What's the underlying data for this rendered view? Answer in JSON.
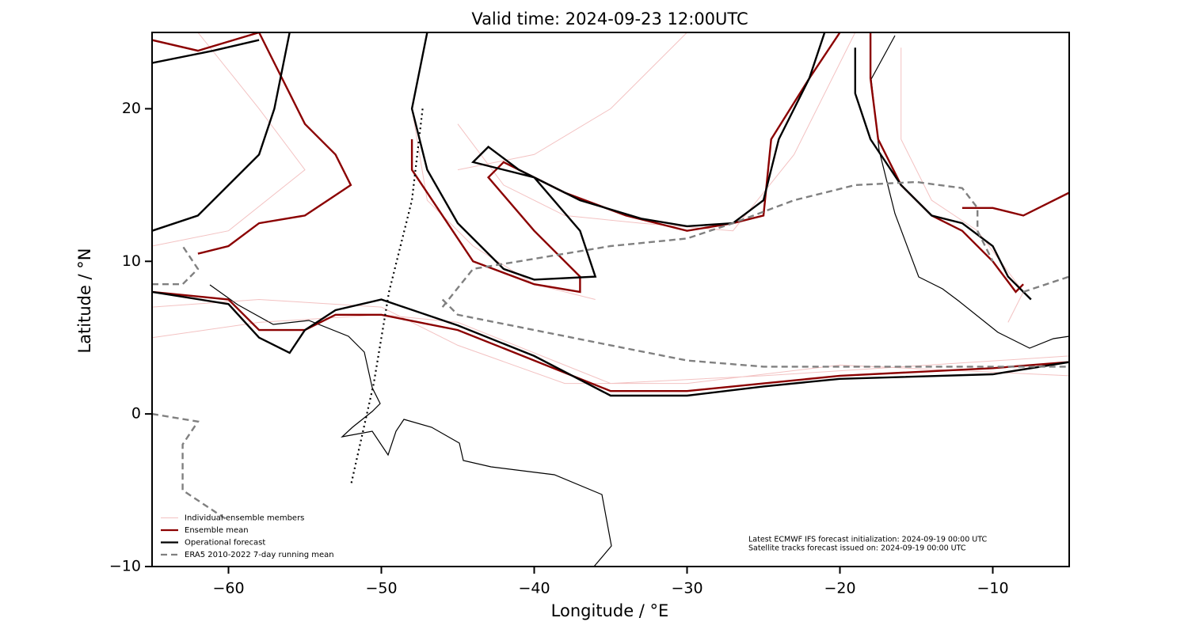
{
  "chart_data": {
    "type": "line",
    "title": "Valid time: 2024-09-23 12:00UTC",
    "xlabel": "Longitude / °E",
    "ylabel": "Latitude / °N",
    "xlim": [
      -65,
      -5
    ],
    "ylim": [
      -10,
      25
    ],
    "xticks": [
      {
        "value": -60,
        "label": "−60"
      },
      {
        "value": -50,
        "label": "−50"
      },
      {
        "value": -40,
        "label": "−40"
      },
      {
        "value": -30,
        "label": "−30"
      },
      {
        "value": -20,
        "label": "−20"
      },
      {
        "value": -10,
        "label": "−10"
      }
    ],
    "yticks": [
      {
        "value": -10,
        "label": "−10"
      },
      0,
      10,
      20
    ],
    "legend": "lower left",
    "series": [
      {
        "name": "Individual ensemble members",
        "color": "#e06666",
        "alpha": 0.4,
        "style": "solid",
        "x": [
          -65,
          -58,
          -50,
          -45,
          -40,
          -35,
          -25,
          -5,
          null,
          -65,
          -58,
          -50,
          -45,
          -38,
          -30,
          -20,
          -5,
          null,
          -48,
          -47,
          -44,
          -40,
          -36,
          null,
          -45,
          -42,
          -38,
          -33,
          -27,
          -23,
          -19,
          null,
          -62,
          -58,
          -55,
          -60,
          -65,
          null,
          -16,
          -16,
          -14,
          -11,
          -8,
          -9,
          null,
          -30,
          -35,
          -40,
          -45
        ],
        "y": [
          5,
          6,
          6.5,
          6,
          4,
          2,
          2.5,
          3.8,
          null,
          7,
          7.5,
          7,
          4.5,
          2,
          2,
          3.2,
          2.5,
          null,
          20,
          14,
          11,
          8.5,
          7.5,
          null,
          19,
          15,
          13,
          12.5,
          12,
          17,
          25,
          null,
          25,
          20,
          16,
          12,
          11,
          null,
          24,
          18,
          14,
          12,
          8,
          6,
          null,
          25,
          20,
          17,
          16
        ]
      },
      {
        "name": "Ensemble mean",
        "color": "#8b0000",
        "alpha": 1,
        "style": "solid",
        "x": [
          -65,
          -60,
          -58,
          -55,
          -53,
          -50,
          -45,
          -40,
          -35,
          -30,
          -25,
          -20,
          -10,
          -5,
          null,
          -48,
          -48,
          -46,
          -44,
          -40,
          -37,
          -37,
          -40,
          -43,
          -42,
          -38,
          -34,
          -30,
          -27,
          -25,
          -24.5,
          -22,
          -20,
          null,
          -65,
          -62,
          -58,
          null,
          -58,
          -57,
          -56,
          -55,
          -53,
          -52,
          -55,
          -58,
          -60,
          -62,
          null,
          -18,
          -18,
          -17.5,
          -16,
          -14,
          -12,
          -10,
          -8.5,
          -8,
          null,
          -5,
          -8,
          -10,
          -12
        ],
        "y": [
          8,
          7.5,
          5.5,
          5.5,
          6.5,
          6.5,
          5.5,
          3.5,
          1.5,
          1.5,
          2,
          2.5,
          3,
          3.4,
          null,
          18,
          16,
          13,
          10,
          8.5,
          8,
          9,
          12,
          15.5,
          16.5,
          14.5,
          13,
          12,
          12.5,
          13,
          18,
          22,
          25,
          null,
          24.5,
          23.8,
          25,
          null,
          25,
          23,
          21,
          19,
          17,
          15,
          13,
          12.5,
          11,
          10.5,
          null,
          25,
          22,
          18,
          15,
          13,
          12,
          10,
          8,
          8.5,
          null,
          14.5,
          13,
          13.5,
          13.5
        ]
      },
      {
        "name": "Operational forecast",
        "color": "#000000",
        "alpha": 1,
        "style": "solid",
        "x": [
          -65,
          -60,
          -58,
          -56,
          -55,
          -53,
          -50,
          -45,
          -40,
          -35,
          -30,
          -25,
          -20,
          -10,
          -5,
          null,
          -47,
          -48,
          -47,
          -45,
          -42,
          -40,
          -36,
          -37,
          -40,
          -44,
          -43,
          -41,
          -37,
          -33,
          -30,
          -27,
          -25,
          -24,
          -22,
          -21,
          null,
          -65,
          -61,
          -58,
          null,
          -56,
          -57,
          -58,
          -60,
          -62,
          -65,
          null,
          -19,
          -19,
          -18,
          -16,
          -14,
          -12,
          -10,
          -9,
          -8,
          -7.5
        ],
        "y": [
          8,
          7.2,
          5,
          4,
          5.5,
          6.8,
          7.5,
          5.8,
          3.8,
          1.2,
          1.2,
          1.8,
          2.3,
          2.6,
          3.4,
          null,
          25,
          20,
          16,
          12.5,
          9.5,
          8.8,
          9,
          12,
          15.5,
          16.5,
          17.5,
          16,
          14,
          12.8,
          12.3,
          12.5,
          14,
          18,
          22,
          25,
          null,
          23,
          23.8,
          24.5,
          null,
          25,
          20,
          17,
          15,
          13,
          12,
          null,
          24,
          21,
          18,
          15,
          13,
          12.5,
          11,
          9,
          8,
          7.5
        ]
      },
      {
        "name": "ERA5 2010-2022 7-day running mean",
        "color": "#808080",
        "alpha": 1,
        "style": "dashed",
        "x": [
          -65,
          -63,
          -62,
          -63,
          null,
          -46,
          -44,
          -41,
          -38,
          -35,
          -30,
          -27,
          -23,
          -19,
          -15,
          -12,
          -11,
          -11,
          -10,
          null,
          -46,
          -45,
          -40,
          -35,
          -30,
          -25,
          -20,
          -5,
          null,
          -8,
          -5,
          null,
          -65,
          -62,
          -63,
          -63,
          -60
        ],
        "y": [
          8.5,
          8.5,
          9.5,
          11,
          null,
          7,
          9.5,
          10,
          10.5,
          11,
          11.5,
          12.5,
          14,
          15,
          15.2,
          14.8,
          13.5,
          12,
          10,
          null,
          7.5,
          6.5,
          5.5,
          4.5,
          3.5,
          3.1,
          3.1,
          3.1,
          null,
          8,
          9,
          null,
          0,
          -0.5,
          -2,
          -5,
          -7
        ]
      }
    ],
    "track": {
      "color": "#000000",
      "style": "dotted",
      "x": [
        -47.3,
        -48,
        -49.5,
        -50.5,
        -52
      ],
      "y": [
        20,
        14,
        8,
        2,
        -4.7
      ]
    },
    "annotation": [
      "Latest ECMWF IFS forecast initialization: 2024-09-19 00:00 UTC",
      "Satellite tracks forecast issued on: 2024-09-19 00:00 UTC"
    ]
  }
}
